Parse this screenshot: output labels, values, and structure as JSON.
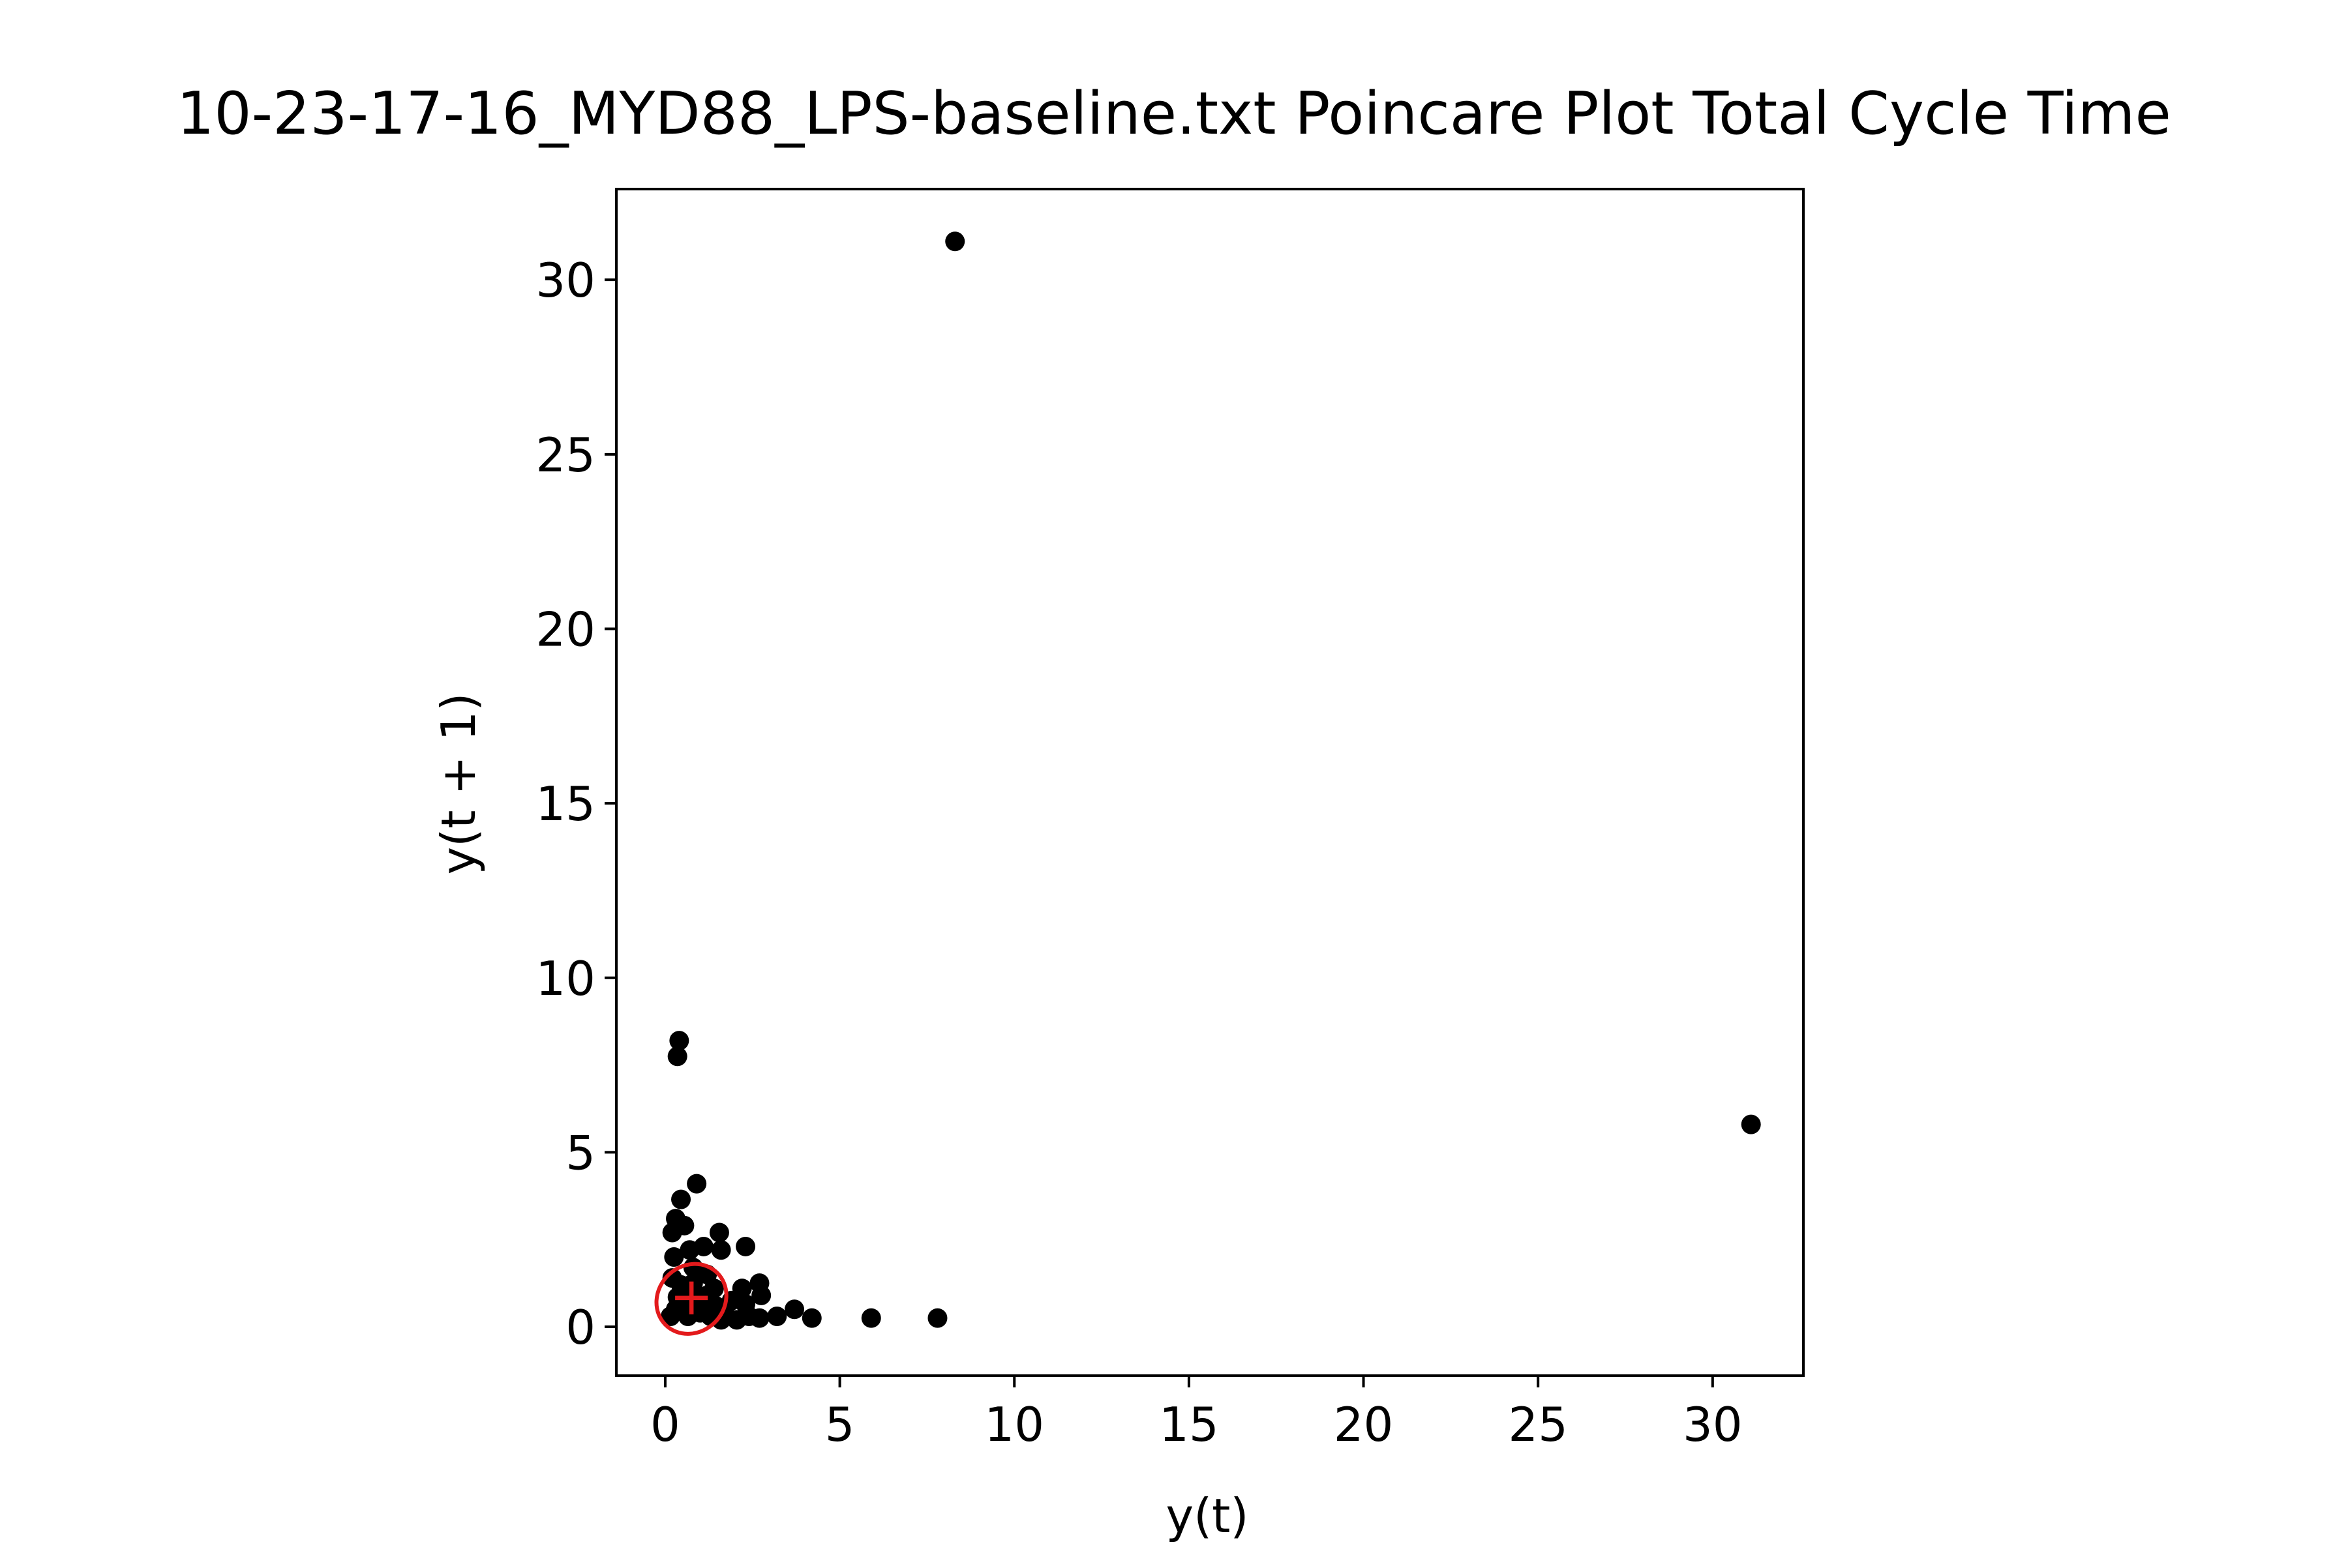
{
  "chart_data": {
    "type": "scatter",
    "title": "10-23-17-16_MYD88_LPS-baseline.txt Poincare Plot Total Cycle Time",
    "xlabel": "y(t)",
    "ylabel": "y(t + 1)",
    "xlim": [
      -1.4,
      32.6
    ],
    "ylim": [
      -1.4,
      32.6
    ],
    "xticks": [
      0,
      5,
      10,
      15,
      20,
      25,
      30
    ],
    "yticks": [
      0,
      5,
      10,
      15,
      20,
      25,
      30
    ],
    "grid": false,
    "series": [
      {
        "marker_color": "#000000",
        "points": [
          [
            8.3,
            31.1
          ],
          [
            31.1,
            5.8
          ],
          [
            0.4,
            8.2
          ],
          [
            0.35,
            7.75
          ],
          [
            0.9,
            4.1
          ],
          [
            0.45,
            3.65
          ],
          [
            0.3,
            3.1
          ],
          [
            0.55,
            2.9
          ],
          [
            0.2,
            2.7
          ],
          [
            1.55,
            2.7
          ],
          [
            2.3,
            2.3
          ],
          [
            1.6,
            2.2
          ],
          [
            1.1,
            2.3
          ],
          [
            0.7,
            2.2
          ],
          [
            0.25,
            2.0
          ],
          [
            0.8,
            1.7
          ],
          [
            0.2,
            1.4
          ],
          [
            0.45,
            1.2
          ],
          [
            1.2,
            1.5
          ],
          [
            1.4,
            1.1
          ],
          [
            2.7,
            1.25
          ],
          [
            2.2,
            1.1
          ],
          [
            2.75,
            0.9
          ],
          [
            1.9,
            0.75
          ],
          [
            2.3,
            0.65
          ],
          [
            3.7,
            0.5
          ],
          [
            2.4,
            0.3
          ],
          [
            3.2,
            0.3
          ],
          [
            2.7,
            0.25
          ],
          [
            4.2,
            0.25
          ],
          [
            5.9,
            0.25
          ],
          [
            7.8,
            0.25
          ],
          [
            2.05,
            0.2
          ],
          [
            1.6,
            0.2
          ],
          [
            1.3,
            0.3
          ],
          [
            1.0,
            0.4
          ],
          [
            0.65,
            0.3
          ],
          [
            0.3,
            0.5
          ],
          [
            0.15,
            0.3
          ],
          [
            0.6,
            0.7
          ],
          [
            0.9,
            0.9
          ],
          [
            1.1,
            0.6
          ],
          [
            0.35,
            0.85
          ],
          [
            1.2,
            0.9
          ],
          [
            0.8,
            1.25
          ],
          [
            0.55,
            1.0
          ],
          [
            1.45,
            0.6
          ],
          [
            1.75,
            0.3
          ]
        ]
      }
    ],
    "overlay": {
      "ellipse_color": "#e31a1c",
      "center": [
        0.75,
        0.8
      ],
      "radius_x": 1.05,
      "radius_y": 0.95,
      "rotation_deg": -45,
      "center_marker": "+"
    }
  }
}
